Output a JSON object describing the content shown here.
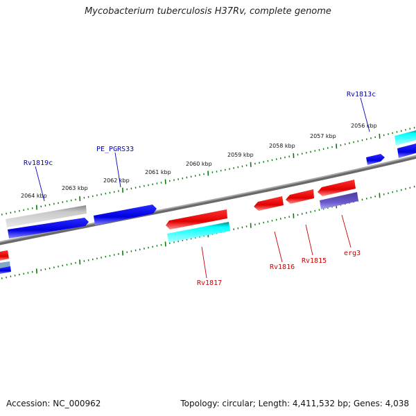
{
  "title": "Mycobacterium tuberculosis H37Rv, complete genome",
  "footer": {
    "accession": "Accession: NC_000962",
    "summary": "Topology: circular; Length: 4,411,532 bp; Genes: 4,038"
  },
  "colors": {
    "backbone": "#888888",
    "tick": "#0a7a0a",
    "forward_label": "#0000bb",
    "reverse_label": "#cc0000",
    "red": "#ff0000",
    "blue": "#0000ff",
    "cyan": "#00ffff",
    "gray": "#b0b0b0",
    "purple": "#6a5acd"
  },
  "scale_labels": [
    {
      "text": "2064 kbp"
    },
    {
      "text": "2063 kbp"
    },
    {
      "text": "2062 kbp"
    },
    {
      "text": "2061 kbp"
    },
    {
      "text": "2060 kbp"
    },
    {
      "text": "2059 kbp"
    },
    {
      "text": "2058 kbp"
    },
    {
      "text": "2057 kbp"
    },
    {
      "text": "2056 kbp"
    }
  ],
  "genes": [
    {
      "name": "Rv1819c",
      "strand": "forward",
      "color": "blue"
    },
    {
      "name": "PE_PGRS33",
      "strand": "forward",
      "color": "blue"
    },
    {
      "name": "Rv1813c",
      "strand": "forward",
      "color": "blue"
    },
    {
      "name": "Rv1817",
      "strand": "reverse",
      "color": "red"
    },
    {
      "name": "Rv1816",
      "strand": "reverse",
      "color": "red"
    },
    {
      "name": "Rv1815",
      "strand": "reverse",
      "color": "red"
    },
    {
      "name": "erg3",
      "strand": "reverse",
      "color": "purple"
    }
  ]
}
